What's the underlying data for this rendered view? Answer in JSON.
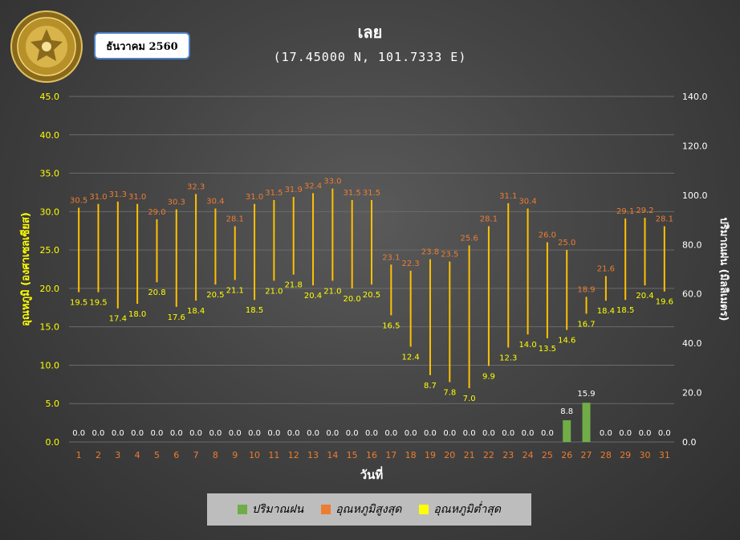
{
  "header": {
    "title": "เลย",
    "subtitle": "(17.45000 N, 101.7333 E)",
    "month": "ธันวาคม 2560"
  },
  "logo": {
    "icon": "meteorological-department-seal-icon",
    "text": "METEOROLOGICAL DEPARTMENT"
  },
  "chart_data": {
    "type": "bar",
    "xlabel": "วันที่",
    "ylabel_left": "อุณหภูมิ (องศาเซลเซียส)",
    "ylabel_right": "ปริมาณฝน (มิลลิเมตร)",
    "ylim_left": [
      0,
      45
    ],
    "yticks_left": [
      "0.0",
      "5.0",
      "10.0",
      "15.0",
      "20.0",
      "25.0",
      "30.0",
      "35.0",
      "40.0",
      "45.0"
    ],
    "ylim_right": [
      0,
      140
    ],
    "yticks_right": [
      "0.0",
      "20.0",
      "40.0",
      "60.0",
      "80.0",
      "100.0",
      "120.0",
      "140.0"
    ],
    "categories": [
      "1",
      "2",
      "3",
      "4",
      "5",
      "6",
      "7",
      "8",
      "9",
      "10",
      "11",
      "12",
      "13",
      "14",
      "15",
      "16",
      "17",
      "18",
      "19",
      "20",
      "21",
      "22",
      "23",
      "24",
      "25",
      "26",
      "27",
      "28",
      "29",
      "30",
      "31"
    ],
    "series": [
      {
        "name": "ปริมาณฝน",
        "axis": "right",
        "color": "#70ad47",
        "values": [
          0.0,
          0.0,
          0.0,
          0.0,
          0.0,
          0.0,
          0.0,
          0.0,
          0.0,
          0.0,
          0.0,
          0.0,
          0.0,
          0.0,
          0.0,
          0.0,
          0.0,
          0.0,
          0.0,
          0.0,
          0.0,
          0.0,
          0.0,
          0.0,
          0.0,
          8.8,
          15.9,
          0.0,
          0.0,
          0.0,
          0.0
        ]
      },
      {
        "name": "อุณหภูมิสูงสุด",
        "axis": "left",
        "color": "#ed7d31",
        "values": [
          30.5,
          31.0,
          31.3,
          31.0,
          29.0,
          30.3,
          32.3,
          30.4,
          28.1,
          31.0,
          31.5,
          31.9,
          32.4,
          33.0,
          31.5,
          31.5,
          23.1,
          22.3,
          23.8,
          23.5,
          25.6,
          28.1,
          31.1,
          30.4,
          26.0,
          25.0,
          18.9,
          21.6,
          29.1,
          29.2,
          28.1
        ]
      },
      {
        "name": "อุณหภูมิต่ำสุด",
        "axis": "left",
        "color": "#ffff00",
        "values": [
          19.5,
          19.5,
          17.4,
          18.0,
          20.8,
          17.6,
          18.4,
          20.5,
          21.1,
          18.5,
          21.0,
          21.8,
          20.4,
          21.0,
          20.0,
          20.5,
          16.5,
          12.4,
          8.7,
          7.8,
          7.0,
          9.9,
          12.3,
          14.0,
          13.5,
          14.6,
          16.7,
          18.4,
          18.5,
          20.4,
          19.6
        ]
      }
    ],
    "range_line_color": "#ffc000",
    "tick_label_color_left": "#ffff00",
    "category_label_color": "#ed7d31",
    "grid": true,
    "legend_position": "bottom"
  }
}
